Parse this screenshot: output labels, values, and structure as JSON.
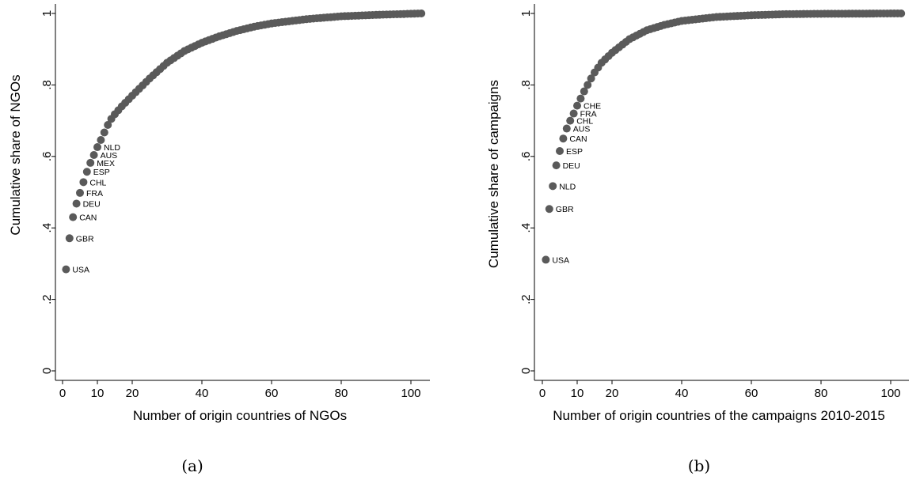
{
  "chart_data": [
    {
      "type": "scatter",
      "caption": "(a)",
      "xlabel": "Number of origin countries of NGOs",
      "ylabel": "Cumulative share of NGOs",
      "xlim": [
        0,
        104
      ],
      "ylim": [
        0,
        1
      ],
      "xticks": [
        {
          "v": 0,
          "t": "0"
        },
        {
          "v": 10,
          "t": "10"
        },
        {
          "v": 20,
          "t": "20"
        },
        {
          "v": 40,
          "t": "40"
        },
        {
          "v": 60,
          "t": "60"
        },
        {
          "v": 80,
          "t": "80"
        },
        {
          "v": 100,
          "t": "100"
        }
      ],
      "yticks": [
        {
          "v": 0,
          "t": "0"
        },
        {
          "v": 0.2,
          "t": ".2"
        },
        {
          "v": 0.4,
          "t": ".4"
        },
        {
          "v": 0.6,
          "t": ".6"
        },
        {
          "v": 0.8,
          "t": ".8"
        },
        {
          "v": 1,
          "t": "1"
        }
      ],
      "n_points": 103,
      "labeled_points": [
        {
          "x": 1,
          "y": 0.284,
          "label": "USA"
        },
        {
          "x": 2,
          "y": 0.371,
          "label": "GBR"
        },
        {
          "x": 3,
          "y": 0.43,
          "label": "CAN"
        },
        {
          "x": 4,
          "y": 0.468,
          "label": "DEU"
        },
        {
          "x": 5,
          "y": 0.498,
          "label": "FRA"
        },
        {
          "x": 6,
          "y": 0.528,
          "label": "CHL"
        },
        {
          "x": 7,
          "y": 0.557,
          "label": "ESP"
        },
        {
          "x": 8,
          "y": 0.582,
          "label": "MEX"
        },
        {
          "x": 9,
          "y": 0.604,
          "label": "AUS"
        },
        {
          "x": 10,
          "y": 0.626,
          "label": "NLD"
        }
      ],
      "curve_anchors": [
        [
          10,
          0.626
        ],
        [
          11,
          0.646
        ],
        [
          12,
          0.667
        ],
        [
          13,
          0.688
        ],
        [
          14,
          0.705
        ],
        [
          15,
          0.718
        ],
        [
          17,
          0.74
        ],
        [
          20,
          0.77
        ],
        [
          25,
          0.818
        ],
        [
          30,
          0.862
        ],
        [
          35,
          0.895
        ],
        [
          40,
          0.918
        ],
        [
          45,
          0.936
        ],
        [
          50,
          0.951
        ],
        [
          55,
          0.963
        ],
        [
          60,
          0.972
        ],
        [
          70,
          0.984
        ],
        [
          80,
          0.992
        ],
        [
          90,
          0.996
        ],
        [
          103,
          1.0
        ]
      ]
    },
    {
      "type": "scatter",
      "caption": "(b)",
      "xlabel": "Number of origin countries of the campaigns 2010-2015",
      "ylabel": "Cumulative share of campaigns",
      "xlim": [
        0,
        104
      ],
      "ylim": [
        0,
        1
      ],
      "xticks": [
        {
          "v": 0,
          "t": "0"
        },
        {
          "v": 10,
          "t": "10"
        },
        {
          "v": 20,
          "t": "20"
        },
        {
          "v": 40,
          "t": "40"
        },
        {
          "v": 60,
          "t": "60"
        },
        {
          "v": 80,
          "t": "80"
        },
        {
          "v": 100,
          "t": "100"
        }
      ],
      "yticks": [
        {
          "v": 0,
          "t": "0"
        },
        {
          "v": 0.2,
          "t": ".2"
        },
        {
          "v": 0.4,
          "t": ".4"
        },
        {
          "v": 0.6,
          "t": ".6"
        },
        {
          "v": 0.8,
          "t": ".8"
        },
        {
          "v": 1,
          "t": "1"
        }
      ],
      "n_points": 103,
      "labeled_points": [
        {
          "x": 1,
          "y": 0.311,
          "label": "USA"
        },
        {
          "x": 2,
          "y": 0.453,
          "label": "GBR"
        },
        {
          "x": 3,
          "y": 0.517,
          "label": "NLD"
        },
        {
          "x": 4,
          "y": 0.575,
          "label": "DEU"
        },
        {
          "x": 5,
          "y": 0.615,
          "label": "ESP"
        },
        {
          "x": 6,
          "y": 0.65,
          "label": "CAN"
        },
        {
          "x": 7,
          "y": 0.678,
          "label": "AUS"
        },
        {
          "x": 8,
          "y": 0.7,
          "label": "CHL"
        },
        {
          "x": 9,
          "y": 0.72,
          "label": "FRA"
        },
        {
          "x": 10,
          "y": 0.742,
          "label": "CHE"
        }
      ],
      "curve_anchors": [
        [
          10,
          0.742
        ],
        [
          11,
          0.762
        ],
        [
          12,
          0.782
        ],
        [
          13,
          0.8
        ],
        [
          14,
          0.818
        ],
        [
          15,
          0.835
        ],
        [
          17,
          0.862
        ],
        [
          20,
          0.89
        ],
        [
          25,
          0.928
        ],
        [
          30,
          0.953
        ],
        [
          35,
          0.968
        ],
        [
          40,
          0.979
        ],
        [
          50,
          0.99
        ],
        [
          60,
          0.995
        ],
        [
          70,
          0.998
        ],
        [
          80,
          0.999
        ],
        [
          103,
          1.0
        ]
      ]
    }
  ]
}
